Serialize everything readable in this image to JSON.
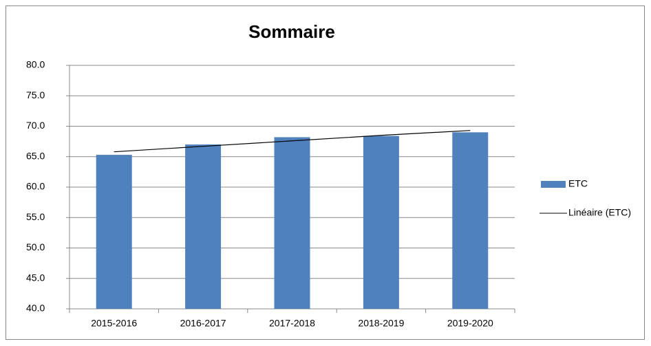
{
  "chart_data": {
    "type": "bar",
    "title": "Sommaire",
    "categories": [
      "2015-2016",
      "2016-2017",
      "2017-2018",
      "2018-2019",
      "2019-2020"
    ],
    "series": [
      {
        "name": "ETC",
        "color": "#4f81bd",
        "values": [
          65.3,
          67.0,
          68.2,
          68.4,
          69.0
        ]
      },
      {
        "name": "Linéaire (ETC)",
        "color": "#000000",
        "type": "line",
        "values": [
          65.8,
          66.7,
          67.6,
          68.5,
          69.3
        ]
      }
    ],
    "ylim": [
      40,
      80
    ],
    "yticks": [
      {
        "value": 40,
        "label": "40.0"
      },
      {
        "value": 45,
        "label": "45.0"
      },
      {
        "value": 50,
        "label": "50.0"
      },
      {
        "value": 55,
        "label": "55.0"
      },
      {
        "value": 60,
        "label": "60.0"
      },
      {
        "value": 65,
        "label": "65.0"
      },
      {
        "value": 70,
        "label": "70.0"
      },
      {
        "value": 75,
        "label": "75.0"
      },
      {
        "value": 80,
        "label": "80.0"
      }
    ],
    "grid": true,
    "legend": "right"
  }
}
